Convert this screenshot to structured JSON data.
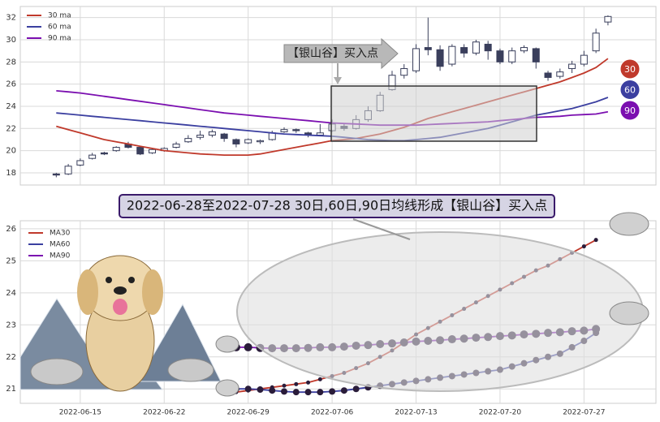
{
  "chart_data": [
    {
      "type": "candlestick",
      "annotation": "【银山谷】买入点",
      "xlim": [
        "2022-06-10",
        "2022-08-02"
      ],
      "ylim": [
        16.9,
        33.0
      ],
      "yticks": [
        18,
        20,
        22,
        24,
        26,
        28,
        30,
        32
      ],
      "grid": true,
      "legend": "upper left",
      "x": [
        "2022-06-13",
        "2022-06-14",
        "2022-06-15",
        "2022-06-16",
        "2022-06-17",
        "2022-06-18",
        "2022-06-19",
        "2022-06-20",
        "2022-06-21",
        "2022-06-22",
        "2022-06-23",
        "2022-06-24",
        "2022-06-25",
        "2022-06-26",
        "2022-06-27",
        "2022-06-28",
        "2022-06-29",
        "2022-06-30",
        "2022-07-01",
        "2022-07-02",
        "2022-07-03",
        "2022-07-04",
        "2022-07-05",
        "2022-07-06",
        "2022-07-07",
        "2022-07-08",
        "2022-07-09",
        "2022-07-10",
        "2022-07-11",
        "2022-07-12",
        "2022-07-13",
        "2022-07-14",
        "2022-07-15",
        "2022-07-16",
        "2022-07-17",
        "2022-07-18",
        "2022-07-19",
        "2022-07-20",
        "2022-07-21",
        "2022-07-22",
        "2022-07-23",
        "2022-07-24",
        "2022-07-25",
        "2022-07-26",
        "2022-07-27",
        "2022-07-28",
        "2022-07-29"
      ],
      "open": [
        17.9,
        17.9,
        18.7,
        19.3,
        19.8,
        20.0,
        20.6,
        20.3,
        19.8,
        20.0,
        20.3,
        20.8,
        21.2,
        21.4,
        21.5,
        21.0,
        20.7,
        20.8,
        21.0,
        21.7,
        21.9,
        21.6,
        21.4,
        21.8,
        22.2,
        22.0,
        22.8,
        23.6,
        25.5,
        26.8,
        27.2,
        29.3,
        29.1,
        27.8,
        29.3,
        28.8,
        29.6,
        29.0,
        28.0,
        29.0,
        29.2,
        27.0,
        26.7,
        27.4,
        27.8,
        29.0,
        31.6
      ],
      "high": [
        18.0,
        18.8,
        19.3,
        19.8,
        19.9,
        20.4,
        20.8,
        20.4,
        20.2,
        20.3,
        20.8,
        21.4,
        21.8,
        21.9,
        21.6,
        21.1,
        21.1,
        21.0,
        21.8,
        22.1,
        22.0,
        21.7,
        22.4,
        22.8,
        22.4,
        23.2,
        24.0,
        25.3,
        27.2,
        27.8,
        29.6,
        32.0,
        29.5,
        29.6,
        29.6,
        30.0,
        29.9,
        29.2,
        29.3,
        29.5,
        29.3,
        27.2,
        27.4,
        28.1,
        29.0,
        31.0,
        32.2
      ],
      "low": [
        17.6,
        17.8,
        18.6,
        19.2,
        19.6,
        19.9,
        20.2,
        19.6,
        19.7,
        19.9,
        20.2,
        20.7,
        21.0,
        21.2,
        20.8,
        20.3,
        20.6,
        20.6,
        20.9,
        21.6,
        21.6,
        21.2,
        21.3,
        21.7,
        21.8,
        21.9,
        22.6,
        23.5,
        25.4,
        26.5,
        27.0,
        28.6,
        27.2,
        27.6,
        28.4,
        28.6,
        28.2,
        27.8,
        27.8,
        28.8,
        27.4,
        26.3,
        26.5,
        27.0,
        27.6,
        28.8,
        31.3
      ],
      "close": [
        17.8,
        18.6,
        19.1,
        19.6,
        19.7,
        20.3,
        20.3,
        19.7,
        20.1,
        20.2,
        20.6,
        21.1,
        21.4,
        21.7,
        21.1,
        20.6,
        21.0,
        20.9,
        21.6,
        21.9,
        21.8,
        21.4,
        21.6,
        22.4,
        22.0,
        22.8,
        23.6,
        25.0,
        26.8,
        27.4,
        29.2,
        29.1,
        27.6,
        29.4,
        28.8,
        29.8,
        29.0,
        28.0,
        29.0,
        29.3,
        28.0,
        26.6,
        27.1,
        27.8,
        28.6,
        30.6,
        32.1
      ],
      "series": [
        {
          "name": "30 ma",
          "end_label": "30",
          "color": "#c0392b",
          "values": [
            22.2,
            21.9,
            21.6,
            21.3,
            21.0,
            20.8,
            20.6,
            20.4,
            20.2,
            20.0,
            19.9,
            19.8,
            19.7,
            19.65,
            19.6,
            19.6,
            19.6,
            19.7,
            19.9,
            20.1,
            20.3,
            20.5,
            20.7,
            20.9,
            21.0,
            21.1,
            21.3,
            21.5,
            21.8,
            22.1,
            22.5,
            22.9,
            23.2,
            23.5,
            23.8,
            24.1,
            24.4,
            24.7,
            25.0,
            25.3,
            25.6,
            25.9,
            26.2,
            26.6,
            27.0,
            27.5,
            28.3
          ]
        },
        {
          "name": "60 ma",
          "end_label": "60",
          "color": "#3b3fa0",
          "values": [
            23.4,
            23.3,
            23.2,
            23.1,
            23.0,
            22.9,
            22.8,
            22.7,
            22.6,
            22.5,
            22.4,
            22.3,
            22.2,
            22.1,
            22.0,
            21.9,
            21.8,
            21.7,
            21.6,
            21.5,
            21.45,
            21.4,
            21.35,
            21.3,
            21.2,
            21.1,
            21.0,
            20.95,
            20.9,
            20.9,
            21.0,
            21.1,
            21.2,
            21.4,
            21.6,
            21.8,
            22.0,
            22.3,
            22.6,
            22.9,
            23.2,
            23.4,
            23.6,
            23.8,
            24.1,
            24.4,
            24.8
          ]
        },
        {
          "name": "90 ma",
          "end_label": "90",
          "color": "#7b0fb0",
          "values": [
            25.4,
            25.3,
            25.2,
            25.05,
            24.9,
            24.75,
            24.6,
            24.45,
            24.3,
            24.15,
            24.0,
            23.85,
            23.7,
            23.55,
            23.4,
            23.3,
            23.2,
            23.1,
            23.0,
            22.9,
            22.8,
            22.7,
            22.6,
            22.5,
            22.45,
            22.4,
            22.35,
            22.3,
            22.3,
            22.3,
            22.3,
            22.35,
            22.4,
            22.45,
            22.5,
            22.55,
            22.6,
            22.7,
            22.8,
            22.9,
            23.0,
            23.05,
            23.1,
            23.2,
            23.25,
            23.3,
            23.5
          ]
        }
      ]
    },
    {
      "type": "line",
      "title": "2022-06-28至2022-07-28 30日,60日,90日均线形成【银山谷】买入点",
      "xlim": [
        "2022-06-10",
        "2022-08-02"
      ],
      "xticks": [
        "2022-06-15",
        "2022-06-22",
        "2022-06-29",
        "2022-07-06",
        "2022-07-13",
        "2022-07-20",
        "2022-07-27"
      ],
      "ylim": [
        20.55,
        26.25
      ],
      "yticks": [
        21,
        22,
        23,
        24,
        25,
        26
      ],
      "grid": true,
      "legend": "upper left",
      "x": [
        "2022-06-28",
        "2022-06-29",
        "2022-06-30",
        "2022-07-01",
        "2022-07-02",
        "2022-07-03",
        "2022-07-04",
        "2022-07-05",
        "2022-07-06",
        "2022-07-07",
        "2022-07-08",
        "2022-07-09",
        "2022-07-10",
        "2022-07-11",
        "2022-07-12",
        "2022-07-13",
        "2022-07-14",
        "2022-07-15",
        "2022-07-16",
        "2022-07-17",
        "2022-07-18",
        "2022-07-19",
        "2022-07-20",
        "2022-07-21",
        "2022-07-22",
        "2022-07-23",
        "2022-07-24",
        "2022-07-25",
        "2022-07-26",
        "2022-07-27",
        "2022-07-28"
      ],
      "series": [
        {
          "name": "MA30",
          "color": "#c0392b",
          "values": [
            20.9,
            20.95,
            21.0,
            21.05,
            21.1,
            21.15,
            21.2,
            21.3,
            21.4,
            21.5,
            21.65,
            21.8,
            22.0,
            22.2,
            22.45,
            22.7,
            22.9,
            23.1,
            23.3,
            23.5,
            23.7,
            23.9,
            24.1,
            24.3,
            24.5,
            24.7,
            24.85,
            25.05,
            25.25,
            25.45,
            25.65
          ]
        },
        {
          "name": "MA60",
          "color": "#3b3fa0",
          "values": [
            21.0,
            21.0,
            20.98,
            20.95,
            20.92,
            20.9,
            20.9,
            20.9,
            20.92,
            20.95,
            21.0,
            21.05,
            21.1,
            21.15,
            21.2,
            21.25,
            21.3,
            21.35,
            21.4,
            21.45,
            21.5,
            21.55,
            21.6,
            21.7,
            21.8,
            21.9,
            22.0,
            22.1,
            22.3,
            22.5,
            22.75
          ]
        },
        {
          "name": "MA90",
          "color": "#7b0fb0",
          "values": [
            22.3,
            22.3,
            22.28,
            22.27,
            22.27,
            22.27,
            22.28,
            22.3,
            22.3,
            22.32,
            22.35,
            22.37,
            22.4,
            22.42,
            22.45,
            22.48,
            22.5,
            22.52,
            22.55,
            22.57,
            22.6,
            22.62,
            22.65,
            22.67,
            22.7,
            22.72,
            22.75,
            22.77,
            22.8,
            22.82,
            22.87
          ]
        }
      ]
    }
  ]
}
